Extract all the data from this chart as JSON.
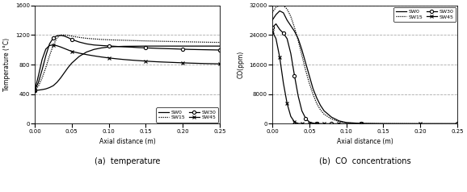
{
  "temp_xlabel": "Axial distance (m)",
  "temp_ylabel": "Temperature (°C)",
  "temp_xlim": [
    0,
    0.25
  ],
  "temp_ylim": [
    0,
    1600
  ],
  "temp_yticks": [
    0,
    400,
    800,
    1200,
    1600
  ],
  "temp_xticks": [
    0,
    0.05,
    0.1,
    0.15,
    0.2,
    0.25
  ],
  "co_xlabel": "Axial distance (m)",
  "co_ylabel": "CO(ppm)",
  "co_xlim": [
    0,
    0.25
  ],
  "co_ylim": [
    0,
    32000
  ],
  "co_yticks": [
    0,
    8000,
    16000,
    24000,
    32000
  ],
  "co_xticks": [
    0,
    0.05,
    0.1,
    0.15,
    0.2,
    0.25
  ],
  "caption_a": "(a)  temperature",
  "caption_b": "(b)  CO  concentrations",
  "background_color": "#ffffff",
  "grid_color": "#aaaaaa",
  "line_color": "#000000"
}
